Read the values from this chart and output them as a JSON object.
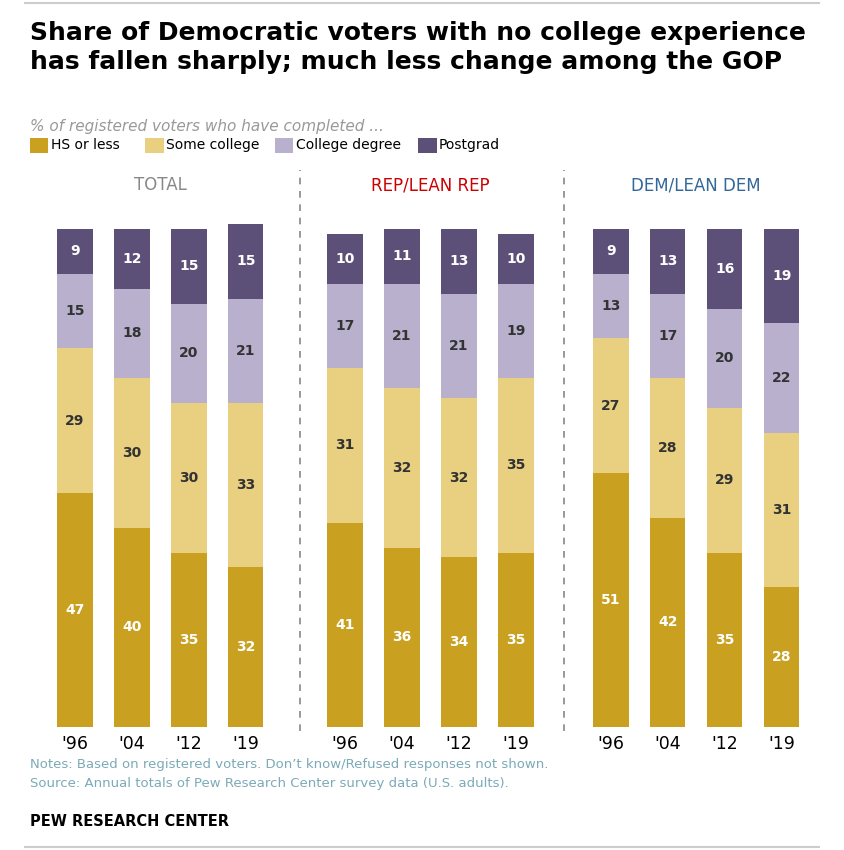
{
  "title": "Share of Democratic voters with no college experience\nhas fallen sharply; much less change among the GOP",
  "subtitle": "% of registered voters who have completed ...",
  "legend_labels": [
    "HS or less",
    "Some college",
    "College degree",
    "Postgrad"
  ],
  "colors": {
    "hs_or_less": "#C9A020",
    "some_college": "#E8D080",
    "college_degree": "#B8B0CC",
    "postgrad": "#5C5078"
  },
  "groups": [
    {
      "title": "TOTAL",
      "title_color": "#888888",
      "years": [
        "'96",
        "'04",
        "'12",
        "'19"
      ],
      "hs_or_less": [
        47,
        40,
        35,
        32
      ],
      "some_college": [
        29,
        30,
        30,
        33
      ],
      "college_degree": [
        15,
        18,
        20,
        21
      ],
      "postgrad": [
        9,
        12,
        15,
        15
      ]
    },
    {
      "title": "REP/LEAN REP",
      "title_color": "#CC0000",
      "years": [
        "'96",
        "'04",
        "'12",
        "'19"
      ],
      "hs_or_less": [
        41,
        36,
        34,
        35
      ],
      "some_college": [
        31,
        32,
        32,
        35
      ],
      "college_degree": [
        17,
        21,
        21,
        19
      ],
      "postgrad": [
        10,
        11,
        13,
        10
      ]
    },
    {
      "title": "DEM/LEAN DEM",
      "title_color": "#336699",
      "years": [
        "'96",
        "'04",
        "'12",
        "'19"
      ],
      "hs_or_less": [
        51,
        42,
        35,
        28
      ],
      "some_college": [
        27,
        28,
        29,
        31
      ],
      "college_degree": [
        13,
        17,
        20,
        22
      ],
      "postgrad": [
        9,
        13,
        16,
        19
      ]
    }
  ],
  "notes": "Notes: Based on registered voters. Don’t know/Refused responses not shown.\nSource: Annual totals of Pew Research Center survey data (U.S. adults).",
  "source_label": "PEW RESEARCH CENTER",
  "notes_color": "#7BAAB8",
  "background_color": "#FFFFFF"
}
